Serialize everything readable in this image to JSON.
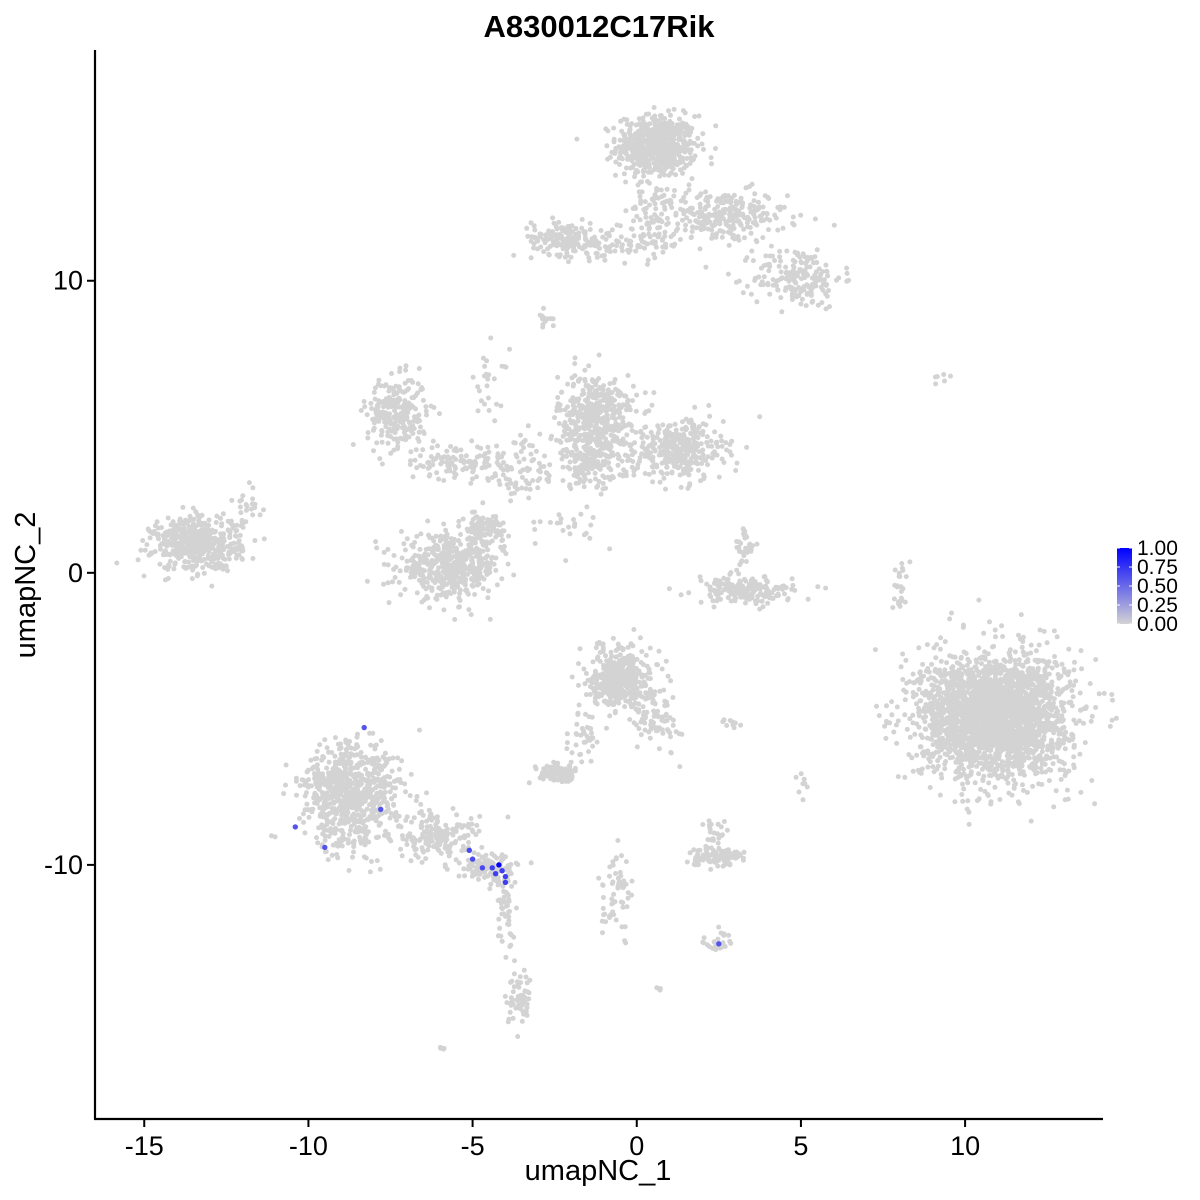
{
  "chart_data": {
    "type": "scatter",
    "title": "A830012C17Rik",
    "xlabel": "umapNC_1",
    "ylabel": "umapNC_2",
    "xlim": [
      -16.5,
      14.2
    ],
    "ylim": [
      -18.7,
      17.9
    ],
    "x_ticks": [
      -15,
      -10,
      -5,
      0,
      5,
      10
    ],
    "x_tick_labels": [
      "-15",
      "-10",
      "-5",
      "0",
      "5",
      "10"
    ],
    "y_ticks": [
      -10,
      0,
      10
    ],
    "y_tick_labels": [
      "-10",
      "0",
      "10"
    ],
    "grid": false,
    "color_scale": {
      "low_color": "#d3d3d3",
      "high_color": "#0000ff",
      "min": 0,
      "max": 1,
      "ticks": [
        1.0,
        0.75,
        0.5,
        0.25,
        0.0
      ],
      "tick_labels": [
        "1.00",
        "0.75",
        "0.50",
        "0.25",
        "0.00"
      ],
      "legend_position": "right"
    },
    "clusters": [
      {
        "cx": 0.6,
        "cy": 14.6,
        "sx": 0.8,
        "sy": 0.7,
        "n": 600
      },
      {
        "cx": 2.6,
        "cy": 12.2,
        "sx": 1.3,
        "sy": 0.6,
        "n": 260
      },
      {
        "cx": 4.9,
        "cy": 10.1,
        "sx": 0.9,
        "sy": 0.7,
        "n": 180
      },
      {
        "cx": 0.6,
        "cy": 12.0,
        "sx": 0.6,
        "sy": 0.9,
        "n": 90
      },
      {
        "cx": -2.3,
        "cy": 11.5,
        "sx": 0.6,
        "sy": 0.4,
        "n": 140
      },
      {
        "cx": -0.9,
        "cy": 11.2,
        "sx": 0.9,
        "sy": 0.3,
        "n": 70
      },
      {
        "cx": -2.8,
        "cy": 8.7,
        "sx": 0.15,
        "sy": 0.25,
        "n": 12
      },
      {
        "cx": -7.3,
        "cy": 5.5,
        "sx": 0.6,
        "sy": 0.8,
        "n": 260
      },
      {
        "cx": -5.5,
        "cy": 3.8,
        "sx": 1.0,
        "sy": 0.4,
        "n": 110
      },
      {
        "cx": -1.2,
        "cy": 5.3,
        "sx": 0.8,
        "sy": 1.0,
        "n": 450
      },
      {
        "cx": 1.3,
        "cy": 4.2,
        "sx": 0.9,
        "sy": 0.7,
        "n": 350
      },
      {
        "cx": -1.4,
        "cy": 3.8,
        "sx": 0.8,
        "sy": 0.6,
        "n": 150
      },
      {
        "cx": -3.5,
        "cy": 3.5,
        "sx": 0.9,
        "sy": 0.8,
        "n": 80
      },
      {
        "cx": -4.5,
        "cy": 6.5,
        "sx": 0.4,
        "sy": 0.8,
        "n": 25
      },
      {
        "cx": -5.7,
        "cy": 0.2,
        "sx": 1.0,
        "sy": 0.7,
        "n": 480
      },
      {
        "cx": -4.6,
        "cy": 1.4,
        "sx": 0.4,
        "sy": 0.5,
        "n": 100
      },
      {
        "cx": -2.0,
        "cy": 1.6,
        "sx": 0.6,
        "sy": 0.5,
        "n": 25
      },
      {
        "cx": -13.4,
        "cy": 1.0,
        "sx": 0.9,
        "sy": 0.6,
        "n": 500
      },
      {
        "cx": -11.9,
        "cy": 2.2,
        "sx": 0.4,
        "sy": 0.5,
        "n": 25
      },
      {
        "cx": 3.3,
        "cy": -0.6,
        "sx": 1.0,
        "sy": 0.3,
        "n": 180
      },
      {
        "cx": 3.3,
        "cy": 0.8,
        "sx": 0.2,
        "sy": 0.5,
        "n": 35
      },
      {
        "cx": 10.9,
        "cy": -4.9,
        "sx": 1.5,
        "sy": 1.4,
        "n": 2600
      },
      {
        "cx": 8.0,
        "cy": -0.5,
        "sx": 0.15,
        "sy": 0.6,
        "n": 25
      },
      {
        "cx": 9.3,
        "cy": 6.7,
        "sx": 0.3,
        "sy": 0.1,
        "n": 6
      },
      {
        "cx": -0.5,
        "cy": -3.6,
        "sx": 0.6,
        "sy": 0.7,
        "n": 420
      },
      {
        "cx": 0.6,
        "cy": -5.0,
        "sx": 0.5,
        "sy": 0.7,
        "n": 80
      },
      {
        "cx": -1.6,
        "cy": -5.6,
        "sx": 0.3,
        "sy": 0.7,
        "n": 40
      },
      {
        "cx": -8.7,
        "cy": -7.6,
        "sx": 1.0,
        "sy": 1.2,
        "n": 750
      },
      {
        "cx": -6.1,
        "cy": -9.0,
        "sx": 0.9,
        "sy": 0.5,
        "n": 160
      },
      {
        "cx": -4.6,
        "cy": -10.1,
        "sx": 0.6,
        "sy": 0.3,
        "n": 120
      },
      {
        "cx": -4.0,
        "cy": -11.5,
        "sx": 0.2,
        "sy": 0.9,
        "n": 50
      },
      {
        "cx": -3.5,
        "cy": -14.6,
        "sx": 0.3,
        "sy": 0.6,
        "n": 60
      },
      {
        "cx": -2.4,
        "cy": -6.9,
        "sx": 0.4,
        "sy": 0.2,
        "n": 90
      },
      {
        "cx": -0.6,
        "cy": -11.0,
        "sx": 0.3,
        "sy": 0.9,
        "n": 60
      },
      {
        "cx": 2.4,
        "cy": -9.7,
        "sx": 0.6,
        "sy": 0.2,
        "n": 110
      },
      {
        "cx": 2.4,
        "cy": -8.8,
        "sx": 0.3,
        "sy": 0.4,
        "n": 25
      },
      {
        "cx": 2.5,
        "cy": -12.6,
        "sx": 0.3,
        "sy": 0.2,
        "n": 22
      },
      {
        "cx": 2.9,
        "cy": -5.1,
        "sx": 0.3,
        "sy": 0.1,
        "n": 10
      },
      {
        "cx": 5.0,
        "cy": -7.2,
        "sx": 0.1,
        "sy": 0.4,
        "n": 8
      },
      {
        "cx": 0.7,
        "cy": -14.3,
        "sx": 0.1,
        "sy": 0.1,
        "n": 4
      },
      {
        "cx": -5.9,
        "cy": -16.3,
        "sx": 0.1,
        "sy": 0.1,
        "n": 5
      }
    ],
    "expressing_points": [
      {
        "x": -8.3,
        "y": -5.3,
        "value": 0.6
      },
      {
        "x": -10.4,
        "y": -8.7,
        "value": 0.6
      },
      {
        "x": -9.5,
        "y": -9.4,
        "value": 0.6
      },
      {
        "x": -7.8,
        "y": -8.1,
        "value": 0.6
      },
      {
        "x": -5.1,
        "y": -9.5,
        "value": 0.65
      },
      {
        "x": -5.0,
        "y": -9.8,
        "value": 0.65
      },
      {
        "x": -4.7,
        "y": -10.1,
        "value": 0.65
      },
      {
        "x": -4.4,
        "y": -10.1,
        "value": 0.7
      },
      {
        "x": -4.3,
        "y": -10.3,
        "value": 0.7
      },
      {
        "x": -4.2,
        "y": -10.0,
        "value": 1.0
      },
      {
        "x": -4.1,
        "y": -10.2,
        "value": 0.7
      },
      {
        "x": -4.0,
        "y": -10.4,
        "value": 0.7
      },
      {
        "x": -4.0,
        "y": -10.6,
        "value": 0.7
      },
      {
        "x": 2.5,
        "y": -12.7,
        "value": 0.6
      }
    ]
  }
}
